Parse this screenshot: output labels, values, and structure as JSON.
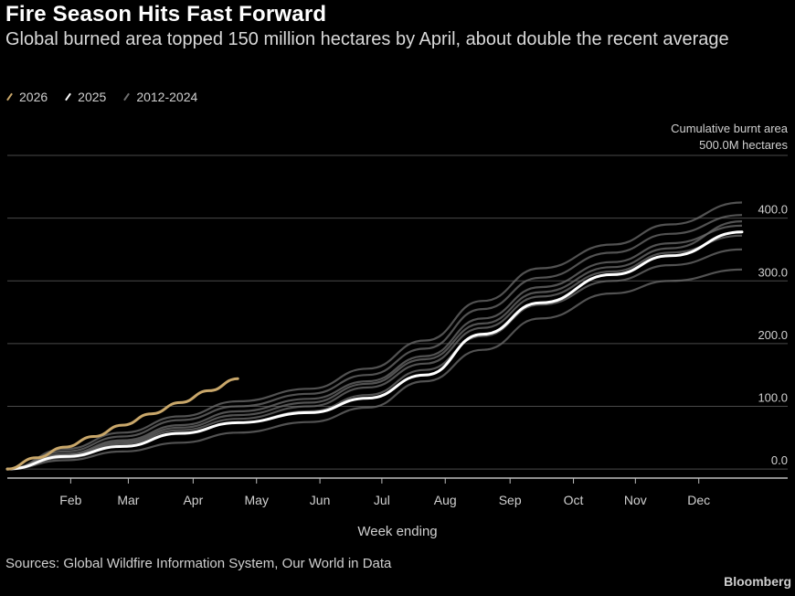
{
  "colors": {
    "background": "#000000",
    "series_2026": "#c9a76a",
    "series_2025": "#ffffff",
    "series_history": "#6e6e6e",
    "grid": "#4a4a4a",
    "text": "#d0d0d0"
  },
  "chart_data": {
    "type": "line",
    "title": "Fire Season Hits Fast Forward",
    "subtitle": "Global burned area topped 150 million hectares by April, about double the recent average",
    "unit_label_line1": "Cumulative burnt area",
    "unit_label_line2": "500.0M hectares",
    "xlabel": "Week ending",
    "ylabel": "",
    "months": [
      "Feb",
      "Mar",
      "Apr",
      "May",
      "Jun",
      "Jul",
      "Aug",
      "Sep",
      "Oct",
      "Nov",
      "Dec"
    ],
    "y_ticks": [
      "400.0",
      "300.0",
      "200.0",
      "100.0",
      "0.0"
    ],
    "y_tick_values": [
      400,
      300,
      200,
      100,
      0
    ],
    "xlim": [
      1,
      52
    ],
    "ylim": [
      -10,
      500
    ],
    "grid": true,
    "legend_position": "top-left",
    "series": [
      {
        "name": "2026",
        "kind": "current",
        "x": [
          1,
          3,
          5,
          7,
          9,
          11,
          13,
          15,
          17
        ],
        "y": [
          0,
          18,
          35,
          52,
          70,
          88,
          106,
          125,
          144
        ]
      },
      {
        "name": "2025",
        "kind": "highlight",
        "x": [
          1,
          5,
          9,
          13,
          17,
          22,
          26,
          30,
          34,
          38,
          43,
          47,
          52
        ],
        "y": [
          0,
          20,
          36,
          57,
          74,
          90,
          113,
          150,
          215,
          265,
          310,
          340,
          378
        ]
      },
      {
        "name": "2012-2024",
        "kind": "history",
        "runs": [
          {
            "x": [
              1,
              5,
              9,
              13,
              17,
              22,
              26,
              30,
              34,
              38,
              43,
              47,
              52
            ],
            "y": [
              0,
              14,
              28,
              42,
              58,
              75,
              98,
              140,
              190,
              240,
              280,
              300,
              318
            ]
          },
          {
            "x": [
              1,
              5,
              9,
              13,
              17,
              22,
              26,
              30,
              34,
              38,
              43,
              47,
              52
            ],
            "y": [
              0,
              20,
              40,
              62,
              80,
              100,
              130,
              168,
              225,
              275,
              315,
              345,
              372
            ]
          },
          {
            "x": [
              1,
              5,
              9,
              13,
              17,
              22,
              26,
              30,
              34,
              38,
              43,
              47,
              52
            ],
            "y": [
              0,
              24,
              46,
              70,
              92,
              112,
              140,
              180,
              240,
              290,
              330,
              360,
              388
            ]
          },
          {
            "x": [
              1,
              5,
              9,
              13,
              17,
              22,
              26,
              30,
              34,
              38,
              43,
              47,
              52
            ],
            "y": [
              0,
              28,
              52,
              78,
              100,
              120,
              150,
              192,
              255,
              305,
              345,
              375,
              405
            ]
          },
          {
            "x": [
              1,
              5,
              9,
              13,
              17,
              22,
              26,
              30,
              34,
              38,
              43,
              47,
              52
            ],
            "y": [
              0,
              32,
              58,
              84,
              108,
              128,
              160,
              205,
              268,
              320,
              358,
              390,
              425
            ]
          },
          {
            "x": [
              1,
              5,
              9,
              13,
              17,
              22,
              26,
              30,
              34,
              38,
              43,
              47,
              52
            ],
            "y": [
              0,
              18,
              36,
              56,
              74,
              92,
              118,
              158,
              212,
              262,
              300,
              325,
              350
            ]
          },
          {
            "x": [
              1,
              5,
              9,
              13,
              17,
              22,
              26,
              30,
              34,
              38,
              43,
              47,
              52
            ],
            "y": [
              0,
              22,
              43,
              66,
              86,
              106,
              136,
              175,
              232,
              282,
              322,
              352,
              395
            ]
          }
        ]
      }
    ]
  },
  "footer": {
    "sources": "Sources: Global Wildfire Information System, Our World in Data",
    "brand": "Bloomberg"
  }
}
